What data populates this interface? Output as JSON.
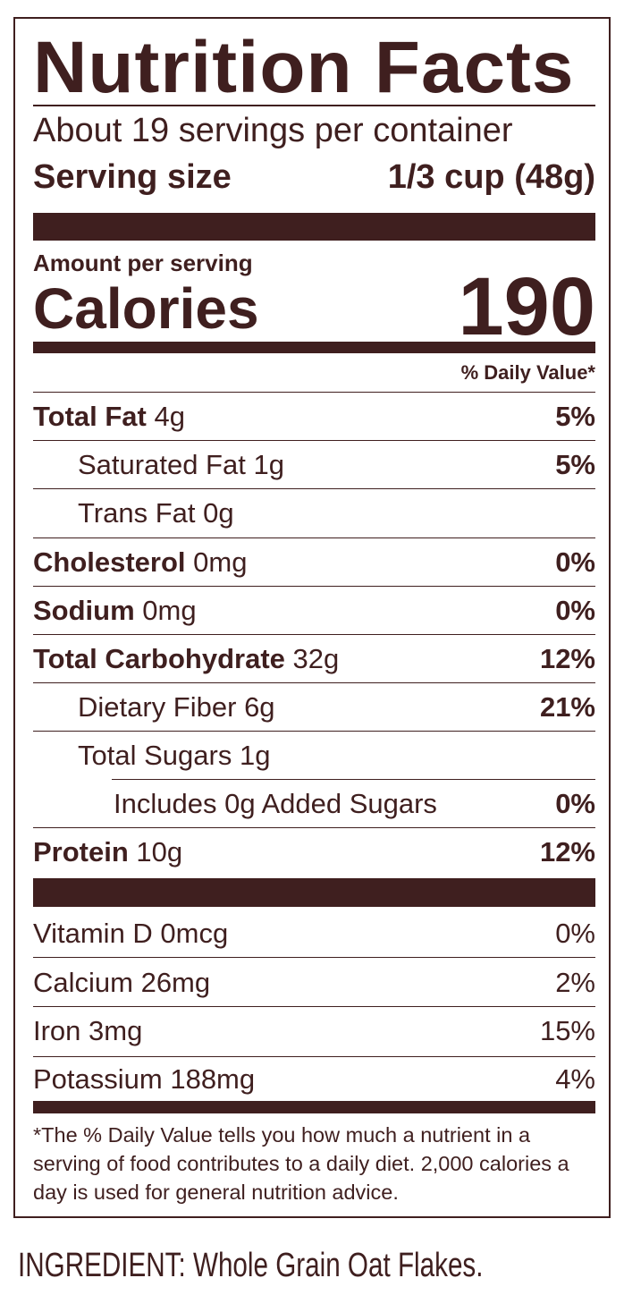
{
  "title": "Nutrition Facts",
  "servings_per_container": "About 19 servings per container",
  "serving_size_label": "Serving size",
  "serving_size_value": "1/3 cup (48g)",
  "amount_per_serving": "Amount per serving",
  "calories_label": "Calories",
  "calories_value": "190",
  "daily_value_header": "% Daily Value*",
  "nutrients": [
    {
      "name": "Total Fat",
      "amount": "4g",
      "dv": "5%"
    },
    {
      "name": "Saturated Fat",
      "amount": "1g",
      "dv": "5%"
    },
    {
      "name": "Trans Fat",
      "amount": "0g",
      "dv": ""
    },
    {
      "name": "Cholesterol",
      "amount": "0mg",
      "dv": "0%"
    },
    {
      "name": "Sodium",
      "amount": "0mg",
      "dv": "0%"
    },
    {
      "name": "Total Carbohydrate",
      "amount": "32g",
      "dv": "12%"
    },
    {
      "name": "Dietary Fiber",
      "amount": "6g",
      "dv": "21%"
    },
    {
      "name": "Total Sugars",
      "amount": "1g",
      "dv": ""
    },
    {
      "name": "Includes 0g Added Sugars",
      "amount": "",
      "dv": "0%"
    },
    {
      "name": "Protein",
      "amount": "10g",
      "dv": "12%"
    }
  ],
  "vitamins": [
    {
      "name": "Vitamin D 0mcg",
      "dv": "0%"
    },
    {
      "name": "Calcium 26mg",
      "dv": "2%"
    },
    {
      "name": "Iron 3mg",
      "dv": "15%"
    },
    {
      "name": "Potassium 188mg",
      "dv": "4%"
    }
  ],
  "footnote": "*The % Daily Value tells you how much a nutrient in a serving of food contributes to a daily diet. 2,000 calories a day is used for general nutrition advice.",
  "ingredients": "INGREDIENT: Whole Grain Oat Flakes.",
  "colors": {
    "ink": "#3f1f1f",
    "background": "#ffffff"
  }
}
